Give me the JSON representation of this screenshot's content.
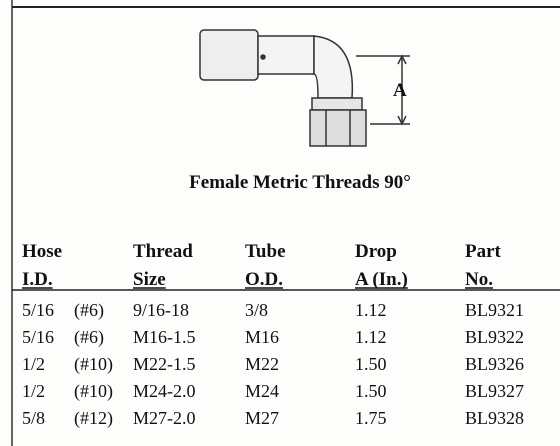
{
  "diagram": {
    "dimension_label": "A",
    "caption": "Female Metric Threads 90°"
  },
  "table": {
    "headers": [
      {
        "line1": "Hose",
        "line2": "I.D."
      },
      {
        "line1": "Thread",
        "line2": "Size"
      },
      {
        "line1": "Tube",
        "line2": "O.D."
      },
      {
        "line1": "Drop",
        "line2": "A (In.)"
      },
      {
        "line1": "Part",
        "line2": "No."
      }
    ],
    "rows": [
      [
        "5/16",
        "(#6)",
        "9/16-18",
        "3/8",
        "1.12",
        "BL9321"
      ],
      [
        "5/16",
        "(#6)",
        "M16-1.5",
        "M16",
        "1.12",
        "BL9322"
      ],
      [
        "1/2",
        "(#10)",
        "M22-1.5",
        "M22",
        "1.50",
        "BL9326"
      ],
      [
        "1/2",
        "(#10)",
        "M24-2.0",
        "M24",
        "1.50",
        "BL9327"
      ],
      [
        "5/8",
        "(#12)",
        "M27-2.0",
        "M27",
        "1.75",
        "BL9328"
      ]
    ]
  }
}
